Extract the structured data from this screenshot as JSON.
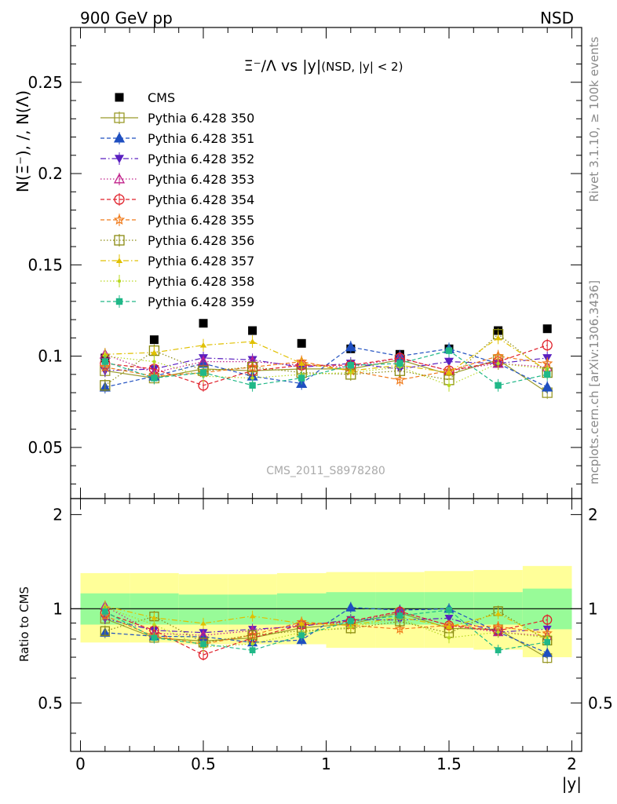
{
  "header": {
    "left": "900 GeV pp",
    "right": "NSD"
  },
  "side_labels": {
    "rivet": "Rivet 3.1.10, ≥ 100k events",
    "mcplots": "mcplots.cern.ch [arXiv:1306.3436]"
  },
  "watermark": "CMS_2011_S8978280",
  "colors": {
    "cms": "#000000",
    "band_inner": "#98fb98",
    "band_outer": "#ffff99"
  },
  "chart_data": [
    {
      "type": "scatter",
      "title": "Ξ⁻/Λ vs |y|",
      "title_suffix": "(NSD, |y| < 2)",
      "ylabel": "N(Ξ⁻), /, N(Λ)",
      "xlim": [
        -0.04,
        2.04
      ],
      "ylim": [
        0.022,
        0.28
      ],
      "yticks": [
        0.05,
        0.1,
        0.15,
        0.2,
        0.25
      ],
      "ytick_labels": [
        "0.05",
        "0.1",
        "0.15",
        "0.2",
        "0.25"
      ],
      "x": [
        0.1,
        0.3,
        0.5,
        0.7,
        0.9,
        1.1,
        1.3,
        1.5,
        1.7,
        1.9
      ],
      "legend_position": "top-left",
      "series": [
        {
          "name": "CMS",
          "marker": "filled-square",
          "line": "none",
          "color": "#000000",
          "values": [
            0.099,
            0.109,
            0.118,
            0.114,
            0.107,
            0.104,
            0.101,
            0.104,
            0.114,
            0.115
          ]
        },
        {
          "name": "Pythia 6.428 350",
          "marker": "open-square",
          "line": "solid",
          "color": "#9a9a2a",
          "values": [
            0.092,
            0.088,
            0.093,
            0.092,
            0.093,
            0.093,
            0.098,
            0.09,
            0.098,
            0.08
          ]
        },
        {
          "name": "Pythia 6.428 351",
          "marker": "filled-triangle-up",
          "line": "dashed",
          "color": "#1f4fc0",
          "values": [
            0.083,
            0.089,
            0.096,
            0.089,
            0.085,
            0.105,
            0.1,
            0.104,
            0.096,
            0.083
          ]
        },
        {
          "name": "Pythia 6.428 352",
          "marker": "filled-triangle-down",
          "line": "dashdot",
          "color": "#5a1fc0",
          "values": [
            0.092,
            0.093,
            0.099,
            0.098,
            0.094,
            0.096,
            0.093,
            0.097,
            0.096,
            0.099
          ]
        },
        {
          "name": "Pythia 6.428 353",
          "marker": "open-triangle-up",
          "line": "dotted",
          "color": "#c0208a",
          "values": [
            0.101,
            0.091,
            0.097,
            0.097,
            0.095,
            0.094,
            0.099,
            0.092,
            0.096,
            0.094
          ]
        },
        {
          "name": "Pythia 6.428 354",
          "marker": "open-circle",
          "line": "dashed",
          "color": "#e0202a",
          "values": [
            0.096,
            0.093,
            0.084,
            0.092,
            0.095,
            0.095,
            0.099,
            0.092,
            0.097,
            0.106
          ]
        },
        {
          "name": "Pythia 6.428 355",
          "marker": "open-star",
          "line": "dashed",
          "color": "#f07a1a",
          "values": [
            0.094,
            0.089,
            0.091,
            0.094,
            0.097,
            0.092,
            0.087,
            0.092,
            0.1,
            0.096
          ]
        },
        {
          "name": "Pythia 6.428 356",
          "marker": "open-square",
          "line": "dotted",
          "color": "#8a8a10",
          "values": [
            0.084,
            0.103,
            0.092,
            0.094,
            0.091,
            0.09,
            0.092,
            0.087,
            0.112,
            0.091
          ]
        },
        {
          "name": "Pythia 6.428 357",
          "marker": "tri-dot",
          "line": "dashdot",
          "color": "#e0c000",
          "values": [
            0.101,
            0.102,
            0.106,
            0.108,
            0.096,
            0.092,
            0.095,
            0.091,
            0.11,
            0.092
          ]
        },
        {
          "name": "Pythia 6.428 358",
          "marker": "small-dot",
          "line": "dotted",
          "color": "#b8d820",
          "values": [
            0.1,
            0.097,
            0.089,
            0.088,
            0.09,
            0.091,
            0.094,
            0.084,
            0.096,
            0.093
          ]
        },
        {
          "name": "Pythia 6.428 359",
          "marker": "filled-square-small",
          "line": "dashed",
          "color": "#20b888",
          "values": [
            0.097,
            0.088,
            0.091,
            0.084,
            0.088,
            0.095,
            0.096,
            0.103,
            0.084,
            0.09
          ]
        }
      ]
    },
    {
      "type": "scatter",
      "ylabel": "Ratio to CMS",
      "xlabel": "|y|",
      "xlim": [
        -0.04,
        2.04
      ],
      "ylim": [
        0.35,
        2.25
      ],
      "yticks": [
        0.5,
        1,
        2
      ],
      "ytick_labels": [
        "0.5",
        "1",
        "2"
      ],
      "xticks": [
        0,
        0.5,
        1,
        1.5,
        2
      ],
      "xtick_labels": [
        "0",
        "0.5",
        "1",
        "1.5",
        "2"
      ],
      "reference_line": 1,
      "x": [
        0.1,
        0.3,
        0.5,
        0.7,
        0.9,
        1.1,
        1.3,
        1.5,
        1.7,
        1.9
      ],
      "bands": {
        "bin_edges": [
          0.0,
          0.2,
          0.4,
          0.6,
          0.8,
          1.0,
          1.2,
          1.4,
          1.6,
          1.8,
          2.0
        ],
        "inner_low": [
          0.89,
          0.89,
          0.89,
          0.89,
          0.89,
          0.89,
          0.89,
          0.89,
          0.89,
          0.86
        ],
        "inner_high": [
          1.12,
          1.12,
          1.11,
          1.11,
          1.12,
          1.13,
          1.13,
          1.13,
          1.13,
          1.16
        ],
        "outer_low": [
          0.78,
          0.78,
          0.77,
          0.77,
          0.77,
          0.75,
          0.75,
          0.75,
          0.74,
          0.7
        ],
        "outer_high": [
          1.3,
          1.3,
          1.29,
          1.29,
          1.3,
          1.31,
          1.31,
          1.32,
          1.33,
          1.37
        ]
      }
    }
  ]
}
